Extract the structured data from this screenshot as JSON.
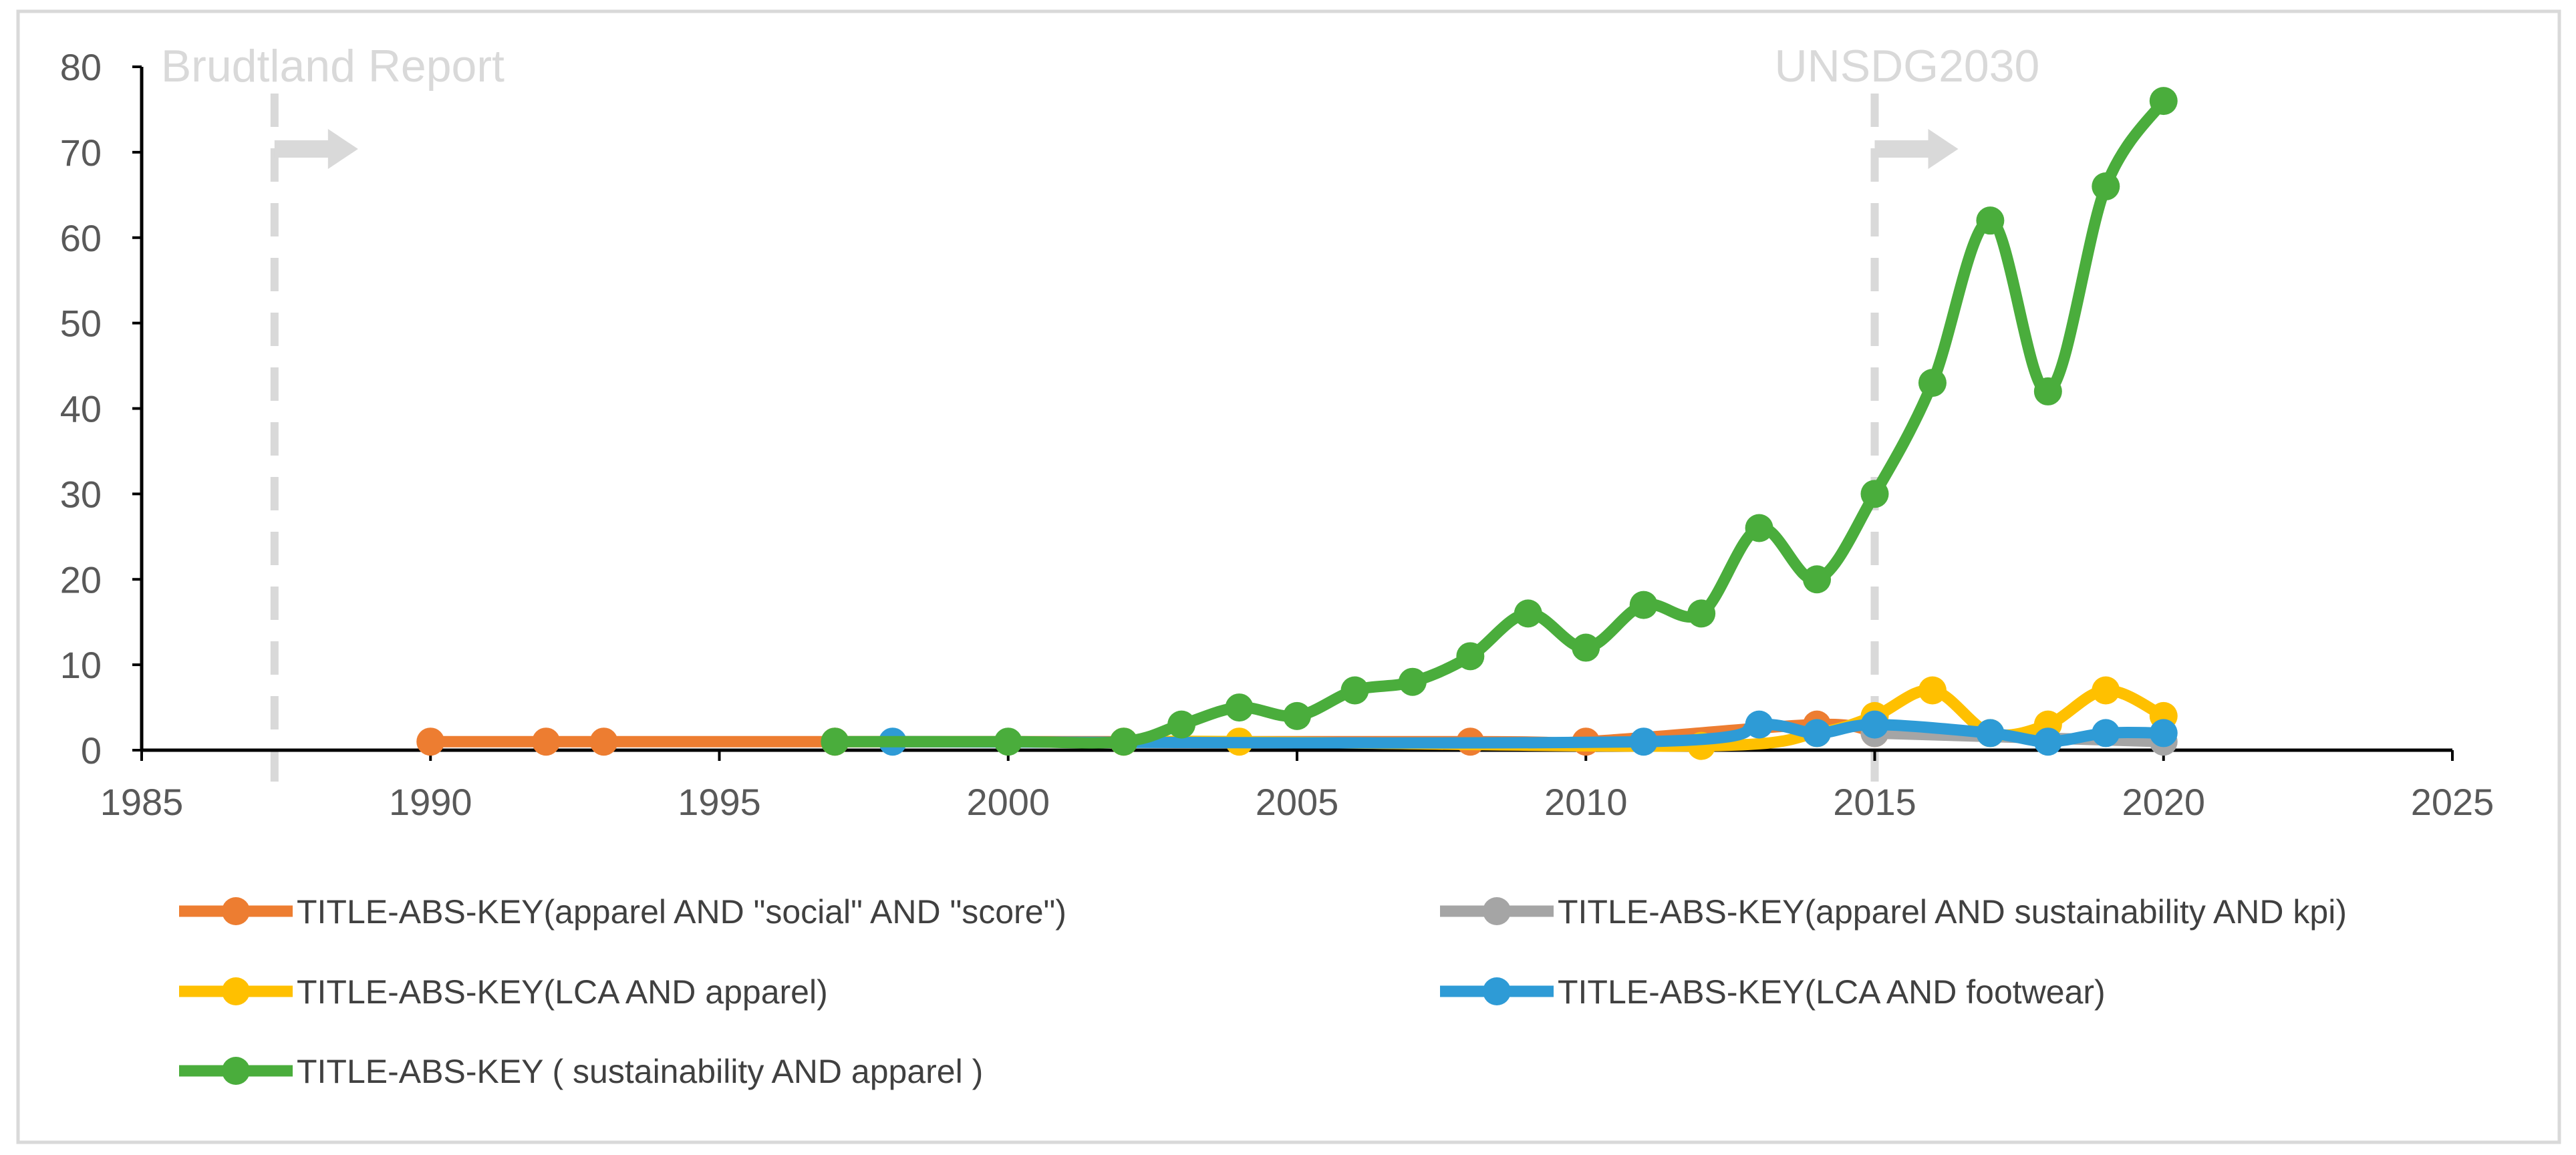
{
  "chart_data": {
    "type": "line",
    "title": "",
    "xlabel": "",
    "ylabel": "",
    "xlim": [
      1985,
      2025
    ],
    "ylim": [
      0,
      80
    ],
    "xticks": [
      1985,
      1990,
      1995,
      2000,
      2005,
      2010,
      2015,
      2020,
      2025
    ],
    "yticks": [
      0,
      10,
      20,
      30,
      40,
      50,
      60,
      70,
      80
    ],
    "grid": false,
    "legend_position": "bottom",
    "annotations": [
      {
        "text": "Brudtland Report",
        "x": 1987.3,
        "color": "#d9d9d9"
      },
      {
        "text": "UNSDG2030",
        "x": 2015,
        "color": "#d9d9d9"
      }
    ],
    "series": [
      {
        "name": "TITLE-ABS-KEY(apparel AND \"social\" AND \"score\")",
        "color": "#ed7d31",
        "points": [
          [
            1990,
            1
          ],
          [
            1992,
            1
          ],
          [
            1993,
            1
          ],
          [
            1997,
            1
          ],
          [
            2008,
            1
          ],
          [
            2010,
            1
          ],
          [
            2014,
            3
          ],
          [
            2015,
            2
          ]
        ]
      },
      {
        "name": "TITLE-ABS-KEY(apparel AND sustainability AND kpi)",
        "color": "#a5a5a5",
        "points": [
          [
            2015,
            2
          ],
          [
            2020,
            1
          ]
        ]
      },
      {
        "name": "TITLE-ABS-KEY(LCA AND apparel)",
        "color": "#ffc000",
        "points": [
          [
            2002,
            1
          ],
          [
            2004,
            1
          ],
          [
            2012,
            0.5
          ],
          [
            2014,
            2
          ],
          [
            2015,
            4
          ],
          [
            2016,
            7
          ],
          [
            2017,
            2
          ],
          [
            2018,
            3
          ],
          [
            2019,
            7
          ],
          [
            2020,
            4
          ]
        ]
      },
      {
        "name": "TITLE-ABS-KEY(LCA AND footwear)",
        "color": "#2e9bd6",
        "points": [
          [
            1998,
            1
          ],
          [
            2011,
            1
          ],
          [
            2013,
            3
          ],
          [
            2014,
            2
          ],
          [
            2015,
            3
          ],
          [
            2017,
            2
          ],
          [
            2018,
            1
          ],
          [
            2019,
            2
          ],
          [
            2020,
            2
          ]
        ]
      },
      {
        "name": "TITLE-ABS-KEY ( sustainability  AND  apparel )",
        "color": "#4aad3c",
        "points": [
          [
            1997,
            1
          ],
          [
            2000,
            1
          ],
          [
            2002,
            1
          ],
          [
            2003,
            3
          ],
          [
            2004,
            5
          ],
          [
            2005,
            4
          ],
          [
            2006,
            7
          ],
          [
            2007,
            8
          ],
          [
            2008,
            11
          ],
          [
            2009,
            16
          ],
          [
            2010,
            12
          ],
          [
            2011,
            17
          ],
          [
            2012,
            16
          ],
          [
            2013,
            26
          ],
          [
            2014,
            20
          ],
          [
            2015,
            30
          ],
          [
            2016,
            43
          ],
          [
            2017,
            62
          ],
          [
            2018,
            42
          ],
          [
            2019,
            66
          ],
          [
            2020,
            76
          ]
        ]
      }
    ]
  }
}
